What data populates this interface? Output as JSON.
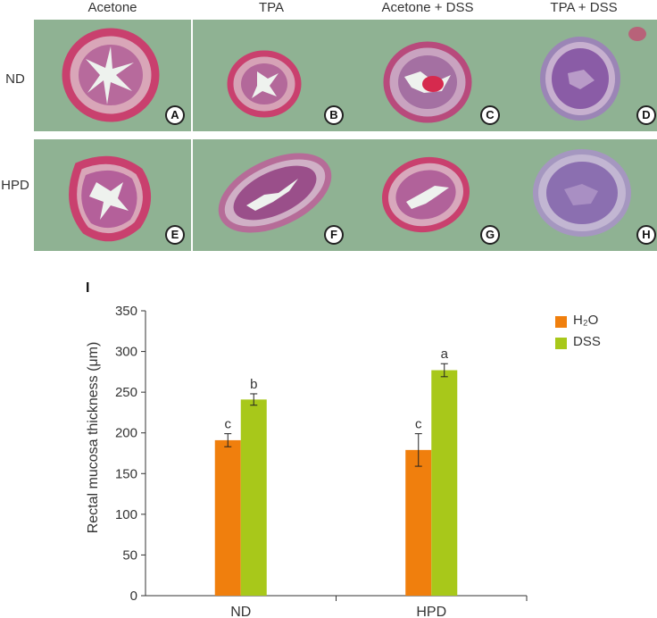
{
  "figure": {
    "column_labels": [
      "Acetone",
      "TPA",
      "Acetone + DSS",
      "TPA + DSS"
    ],
    "row_labels": [
      "ND",
      "HPD"
    ],
    "panels": [
      {
        "letter": "A",
        "tint": "#c9406e"
      },
      {
        "letter": "B",
        "tint": "#c9406e"
      },
      {
        "letter": "C",
        "tint": "#b84a7c"
      },
      {
        "letter": "D",
        "tint": "#8a5ca6"
      },
      {
        "letter": "E",
        "tint": "#c9406e"
      },
      {
        "letter": "F",
        "tint": "#9a4f8a"
      },
      {
        "letter": "G",
        "tint": "#c9406e"
      },
      {
        "letter": "H",
        "tint": "#8b6fb0"
      }
    ],
    "background_color": "#8fb293",
    "panel_label": "I"
  },
  "chart_data": {
    "type": "bar",
    "categories": [
      "ND",
      "HPD"
    ],
    "series": [
      {
        "name": "H₂O",
        "color": "#f07f0d",
        "values": [
          191,
          179
        ],
        "errors": [
          8,
          20
        ],
        "letters": [
          "c",
          "c"
        ]
      },
      {
        "name": "DSS",
        "color": "#a8c81a",
        "values": [
          241,
          277
        ],
        "errors": [
          7,
          8
        ],
        "letters": [
          "b",
          "a"
        ]
      }
    ],
    "ylabel": "Rectal mucosa thickness (μm)",
    "ylim": [
      0,
      350
    ],
    "yticks": [
      0,
      50,
      100,
      150,
      200,
      250,
      300,
      350
    ],
    "legend_position": "top-right",
    "grid": false
  }
}
